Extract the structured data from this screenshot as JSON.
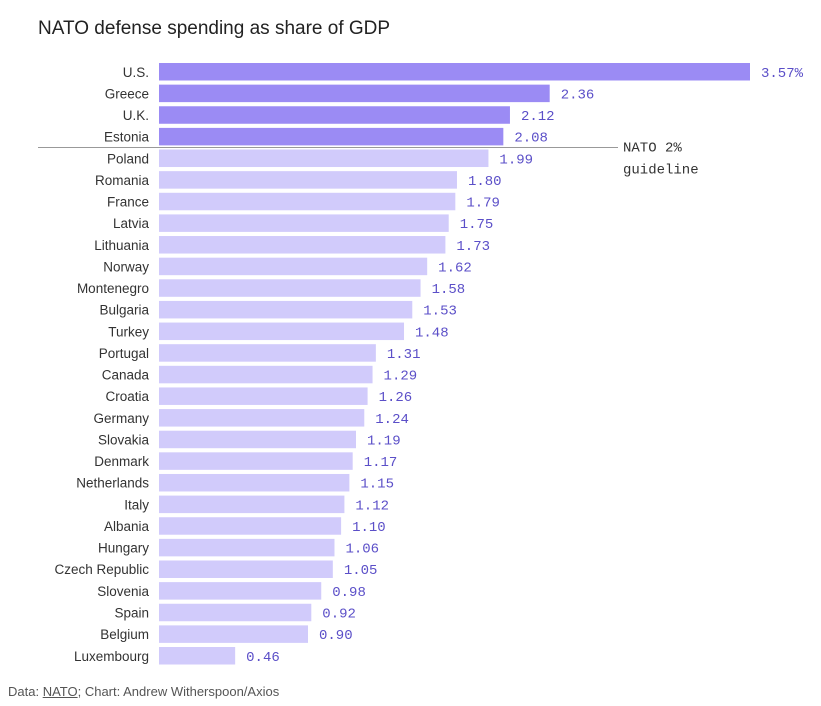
{
  "title": "NATO defense spending as share of GDP",
  "source": {
    "prefix": "Data: ",
    "link_text": "NATO",
    "suffix": "; Chart: Andrew Witherspoon/Axios"
  },
  "colors": {
    "above_guideline": "#9b8bf4",
    "below_guideline": "#d1cbfb",
    "value_text": "#5b4fc8",
    "guideline": "#999999"
  },
  "chart_data": {
    "type": "bar",
    "orientation": "horizontal",
    "title": "NATO defense spending as share of GDP",
    "categories": [
      "U.S.",
      "Greece",
      "U.K.",
      "Estonia",
      "Poland",
      "Romania",
      "France",
      "Latvia",
      "Lithuania",
      "Norway",
      "Montenegro",
      "Bulgaria",
      "Turkey",
      "Portugal",
      "Canada",
      "Croatia",
      "Germany",
      "Slovakia",
      "Denmark",
      "Netherlands",
      "Italy",
      "Albania",
      "Hungary",
      "Czech Republic",
      "Slovenia",
      "Spain",
      "Belgium",
      "Luxembourg"
    ],
    "values": [
      3.57,
      2.36,
      2.12,
      2.08,
      1.99,
      1.8,
      1.79,
      1.75,
      1.73,
      1.62,
      1.58,
      1.53,
      1.48,
      1.31,
      1.29,
      1.26,
      1.24,
      1.19,
      1.17,
      1.15,
      1.12,
      1.1,
      1.06,
      1.05,
      0.98,
      0.92,
      0.9,
      0.46
    ],
    "value_labels": [
      "3.57%",
      "2.36",
      "2.12",
      "2.08",
      "1.99",
      "1.80",
      "1.79",
      "1.75",
      "1.73",
      "1.62",
      "1.58",
      "1.53",
      "1.48",
      "1.31",
      "1.29",
      "1.26",
      "1.24",
      "1.19",
      "1.17",
      "1.15",
      "1.12",
      "1.10",
      "1.06",
      "1.05",
      "0.98",
      "0.92",
      "0.90",
      "0.46"
    ],
    "xlim": [
      0,
      3.57
    ],
    "reference_line": {
      "label_lines": [
        "NATO 2%",
        "guideline"
      ],
      "value": 2
    },
    "grid": false,
    "legend": "none"
  }
}
